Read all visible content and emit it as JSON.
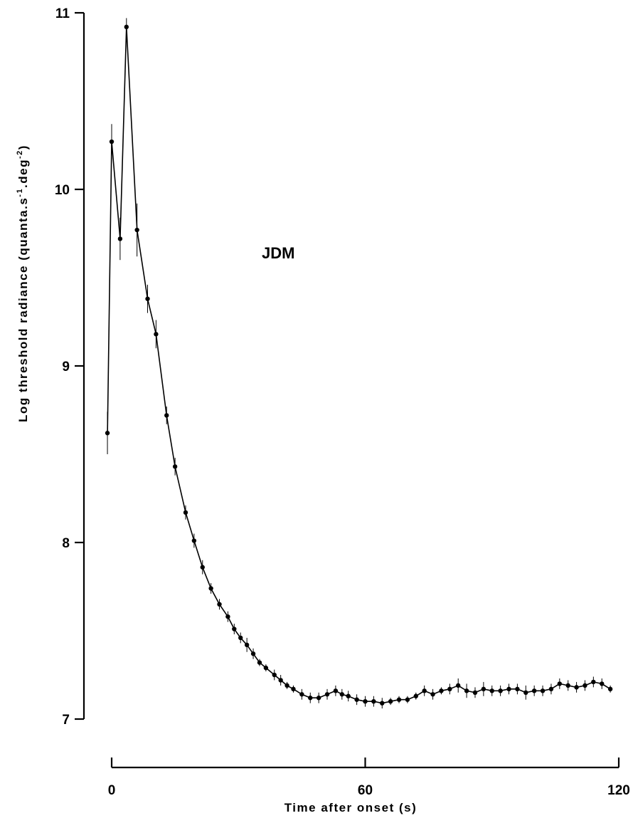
{
  "chart_data": {
    "type": "line",
    "title": "",
    "annotation": "JDM",
    "xlabel": "Time after onset (s)",
    "ylabel_main": "Log threshold radiance (quanta.s",
    "ylabel_sup1": "-1",
    "ylabel_mid": ".deg",
    "ylabel_sup2": "-2",
    "ylabel_end": ")",
    "xlim": [
      0,
      120
    ],
    "ylim": [
      7,
      11
    ],
    "x_ticks": [
      0,
      60,
      120
    ],
    "x_tick_labels": [
      "0",
      "60",
      "120"
    ],
    "y_ticks": [
      7,
      8,
      9,
      10,
      11
    ],
    "y_tick_labels": [
      "7",
      "8",
      "9",
      "10",
      "11"
    ],
    "grid": false,
    "series": [
      {
        "x": [
          -1,
          0,
          2,
          3.5,
          6,
          8.5,
          10.5,
          13,
          15,
          17.5,
          19.5,
          21.5,
          23.5,
          25.5,
          27.5,
          29,
          30.5,
          32,
          33.5,
          35,
          36.5,
          38.5,
          40,
          41.5,
          43,
          45,
          47,
          49,
          51,
          53,
          54.5,
          56,
          58,
          60,
          62,
          64,
          66,
          68,
          70,
          72,
          74,
          76,
          78,
          80,
          82,
          84,
          86,
          88,
          90,
          92,
          94,
          96,
          98,
          100,
          102,
          104,
          106,
          108,
          110,
          112,
          114,
          116,
          118
        ],
        "y": [
          8.62,
          10.27,
          9.72,
          10.92,
          9.77,
          9.38,
          9.18,
          8.72,
          8.43,
          8.17,
          8.01,
          7.86,
          7.74,
          7.65,
          7.58,
          7.51,
          7.46,
          7.42,
          7.37,
          7.32,
          7.29,
          7.25,
          7.22,
          7.19,
          7.17,
          7.14,
          7.12,
          7.12,
          7.14,
          7.16,
          7.14,
          7.13,
          7.11,
          7.1,
          7.1,
          7.09,
          7.1,
          7.11,
          7.11,
          7.13,
          7.16,
          7.14,
          7.16,
          7.17,
          7.19,
          7.16,
          7.15,
          7.17,
          7.16,
          7.16,
          7.17,
          7.17,
          7.15,
          7.16,
          7.16,
          7.17,
          7.2,
          7.19,
          7.18,
          7.19,
          7.21,
          7.2,
          7.17
        ],
        "err": [
          0.12,
          0.1,
          0.12,
          0.05,
          0.15,
          0.08,
          0.08,
          0.05,
          0.05,
          0.04,
          0.04,
          0.04,
          0.03,
          0.03,
          0.03,
          0.03,
          0.03,
          0.04,
          0.03,
          0.02,
          0.02,
          0.03,
          0.03,
          0.02,
          0.02,
          0.03,
          0.03,
          0.03,
          0.03,
          0.03,
          0.03,
          0.03,
          0.03,
          0.03,
          0.03,
          0.03,
          0.02,
          0.02,
          0.02,
          0.02,
          0.03,
          0.03,
          0.02,
          0.03,
          0.04,
          0.04,
          0.03,
          0.04,
          0.03,
          0.03,
          0.03,
          0.03,
          0.04,
          0.03,
          0.03,
          0.03,
          0.03,
          0.03,
          0.03,
          0.03,
          0.03,
          0.03,
          0.02
        ]
      }
    ]
  }
}
